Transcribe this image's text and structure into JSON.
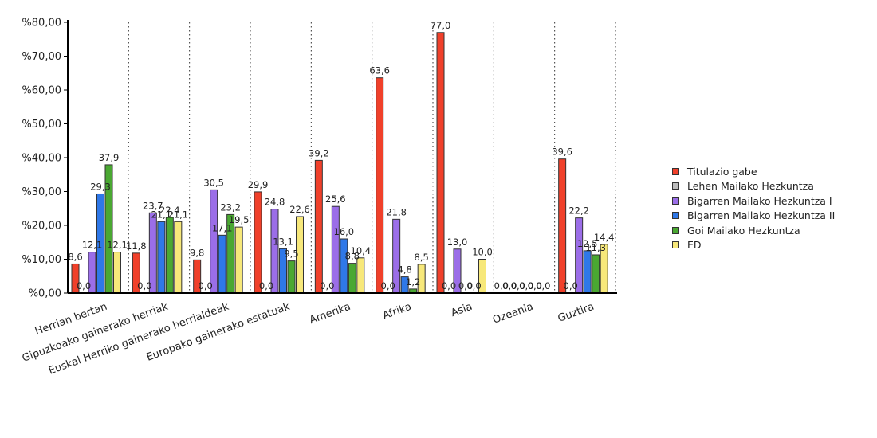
{
  "chart_data": {
    "type": "bar",
    "categories": [
      "Herrian bertan",
      "Gipuzkoako gainerako herriak",
      "Euskal Herriko gainerako herrialdeak",
      "Europako gainerako estatuak",
      "Amerika",
      "Afrika",
      "Asia",
      "Ozeania",
      "Guztira"
    ],
    "series": [
      {
        "name": "Titulazio gabe",
        "color": "#f0402a",
        "values": [
          8.6,
          11.8,
          9.8,
          29.9,
          39.2,
          63.6,
          77.0,
          0.0,
          39.6
        ]
      },
      {
        "name": "Lehen Mailako Hezkuntza",
        "color": "#bdbdbd",
        "values": [
          0.0,
          0.0,
          0.0,
          0.0,
          0.0,
          0.0,
          0.0,
          0.0,
          0.0
        ]
      },
      {
        "name": "Bigarren Mailako Hezkuntza I",
        "color": "#9b6ee8",
        "values": [
          12.1,
          23.7,
          30.5,
          24.8,
          25.6,
          21.8,
          13.0,
          0.0,
          22.2
        ]
      },
      {
        "name": "Bigarren Mailako Hezkuntza II",
        "color": "#2f78e8",
        "values": [
          29.3,
          21.1,
          17.1,
          13.1,
          16.0,
          4.8,
          0.0,
          0.0,
          12.5
        ]
      },
      {
        "name": "Goi Mailako Hezkuntza",
        "color": "#4aa832",
        "values": [
          37.9,
          22.4,
          23.2,
          9.5,
          8.8,
          1.2,
          0.0,
          0.0,
          11.3
        ]
      },
      {
        "name": "ED",
        "color": "#f7e87a",
        "values": [
          12.1,
          21.1,
          19.5,
          22.6,
          10.4,
          8.5,
          10.0,
          0.0,
          14.4
        ]
      }
    ],
    "ylim": [
      0,
      80
    ],
    "yticks": [
      "%0,00",
      "%10,00",
      "%20,00",
      "%30,00",
      "%40,00",
      "%50,00",
      "%60,00",
      "%70,00",
      "%80,00"
    ],
    "grid": "vertical dotted separators",
    "legend_position": "right"
  }
}
